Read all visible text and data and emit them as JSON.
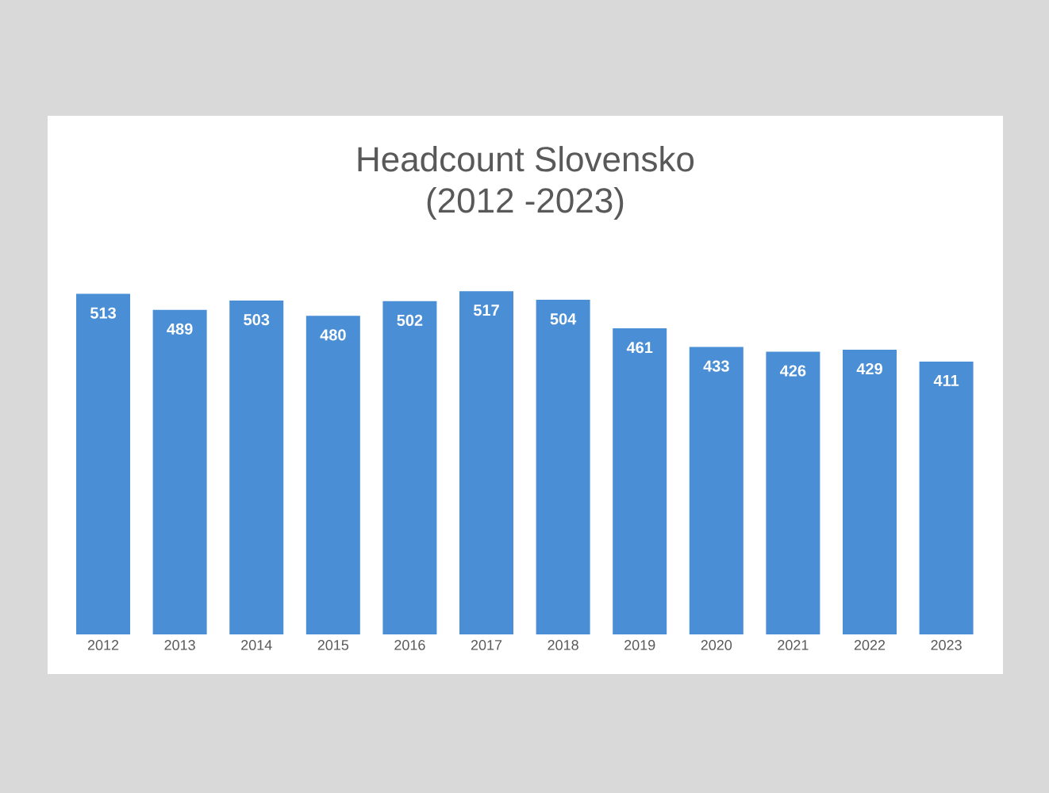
{
  "chart_data": {
    "type": "bar",
    "title": "Headcount Slovensko",
    "subtitle": "(2012 -2023)",
    "categories": [
      "2012",
      "2013",
      "2014",
      "2015",
      "2016",
      "2017",
      "2018",
      "2019",
      "2020",
      "2021",
      "2022",
      "2023"
    ],
    "values": [
      513,
      489,
      503,
      480,
      502,
      517,
      504,
      461,
      433,
      426,
      429,
      411
    ],
    "color": "#4a8fd6",
    "data_labels": true,
    "tick_labels": "x"
  }
}
